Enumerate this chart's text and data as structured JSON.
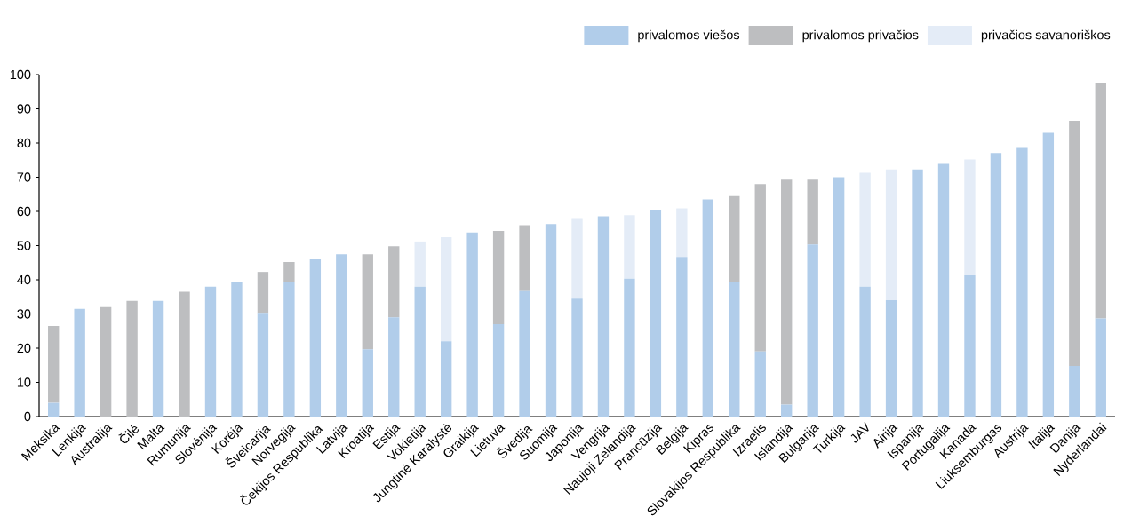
{
  "chart_data": {
    "type": "bar",
    "stacked": true,
    "legend": "top right",
    "categories": [
      "Meksika",
      "Lenkija",
      "Australija",
      "Čilė",
      "Malta",
      "Rumunija",
      "Slovėnija",
      "Korėja",
      "Šveicarija",
      "Norvegija",
      "Čekijos Respublika",
      "Latvija",
      "Kroatija",
      "Estija",
      "Vokietija",
      "Jungtinė Karalystė",
      "Graikija",
      "Lietuva",
      "Švedija",
      "Suomija",
      "Japonija",
      "Vengrija",
      "Naujoji Zelandija",
      "Prancūzija",
      "Belgija",
      "Kipras",
      "Slovakijos Respublika",
      "Izraelis",
      "Islandija",
      "Bulgarija",
      "Turkija",
      "JAV",
      "Airija",
      "Ispanija",
      "Portugalija",
      "Kanada",
      "Liuksemburgas",
      "Austrija",
      "Italija",
      "Danija",
      "Nyderlandai"
    ],
    "series": [
      {
        "name": "privalomos viešos",
        "color": "#b1cdea",
        "values": [
          4,
          31.5,
          0,
          0,
          33.8,
          0,
          38,
          39.5,
          30.3,
          39.3,
          46,
          47.5,
          19.7,
          29,
          38,
          22,
          53.8,
          27,
          36.7,
          56.3,
          34.5,
          58.6,
          40.3,
          60.4,
          46.7,
          63.5,
          39.3,
          19,
          3.5,
          50.3,
          70,
          38,
          34,
          72.3,
          73.9,
          41.3,
          77.1,
          78.6,
          83,
          14.8,
          28.7
        ]
      },
      {
        "name": "privalomos privačios",
        "color": "#bdbec0",
        "values": [
          22.5,
          0,
          32,
          33.8,
          0,
          36.5,
          0,
          0,
          12,
          5.9,
          0,
          0,
          27.8,
          20.8,
          0,
          0,
          0,
          27.3,
          19.3,
          0,
          0,
          0,
          0,
          0,
          0,
          0,
          25.2,
          49,
          65.8,
          19,
          0,
          0,
          0,
          0,
          0,
          0,
          0,
          0,
          0,
          71.7,
          68.9
        ]
      },
      {
        "name": "privačios savanoriškos",
        "color": "#e4ecf7",
        "values": [
          0,
          0,
          0,
          0,
          0,
          0,
          0,
          0,
          0,
          0,
          0,
          0,
          0,
          0,
          13.2,
          30.5,
          0,
          0,
          0,
          0,
          23.3,
          0,
          18.6,
          0,
          14.2,
          0,
          0,
          0,
          0,
          0,
          0,
          33.3,
          38.3,
          0,
          0,
          33.9,
          0,
          0,
          0,
          0,
          0
        ]
      }
    ],
    "ylim": [
      0,
      100
    ],
    "yticks": [
      0,
      10,
      20,
      30,
      40,
      50,
      60,
      70,
      80,
      90,
      100
    ]
  }
}
